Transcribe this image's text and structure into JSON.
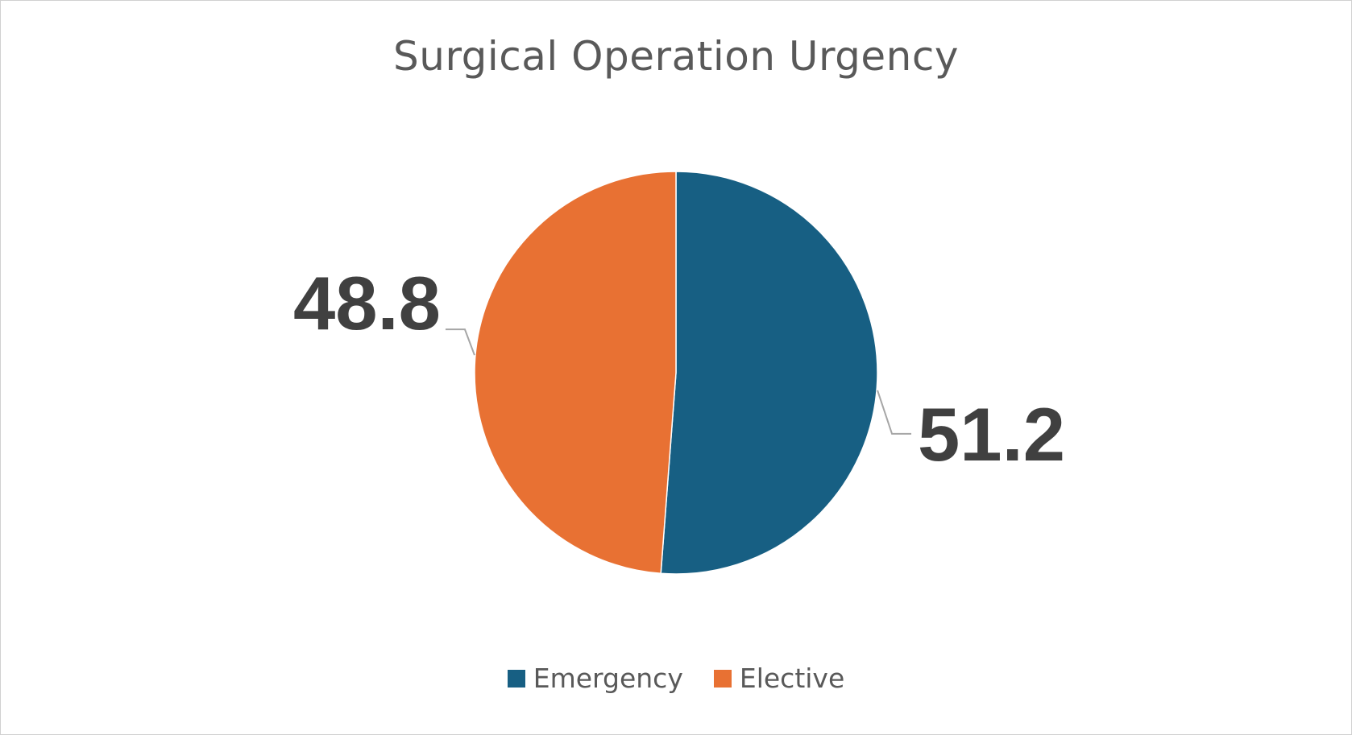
{
  "chart_data": {
    "type": "pie",
    "title": "Surgical Operation Urgency",
    "categories": [
      "Emergency",
      "Elective"
    ],
    "values": [
      51.2,
      48.8
    ],
    "data_labels": [
      "51.2",
      "48.8"
    ],
    "colors": [
      "#175f83",
      "#e87133"
    ],
    "start_angle_deg": 0,
    "direction": "clockwise",
    "legend_position": "bottom"
  }
}
